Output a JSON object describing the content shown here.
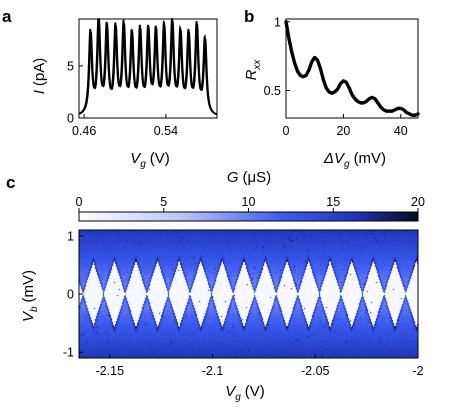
{
  "panels": {
    "a": "a",
    "b": "b",
    "c": "c"
  },
  "colors": {
    "line": "#000000",
    "map_low": "#ffffff",
    "map_mid": "#3d5cf2",
    "map_high": "#0b1440"
  },
  "chart_data": [
    {
      "type": "line",
      "panel": "a",
      "xlabel": {
        "var": "V",
        "sub": "g",
        "unit": "(V)"
      },
      "ylabel": {
        "var": "I",
        "unit": "(pA)"
      },
      "xlim": [
        0.455,
        0.59
      ],
      "ylim": [
        0,
        9.5
      ],
      "xticks": [
        0.46,
        0.54
      ],
      "xtick_labels": [
        "0.46",
        "0.54"
      ],
      "yticks": [
        0,
        5
      ],
      "ytick_labels": [
        "0",
        "5"
      ],
      "peaks_x": [
        0.466,
        0.474,
        0.482,
        0.4905,
        0.4985,
        0.5065,
        0.5145,
        0.5225,
        0.53,
        0.538,
        0.546,
        0.554,
        0.562,
        0.57,
        0.578
      ],
      "peaks_y": [
        7.9,
        8.8,
        8.2,
        8.1,
        8.3,
        7.4,
        7.8,
        7.8,
        7.7,
        8.1,
        8.5,
        7.6,
        7.5,
        8.4,
        7.2
      ],
      "peak_width": 0.0017
    },
    {
      "type": "line",
      "panel": "b",
      "xlabel": {
        "var": "ΔV",
        "sub": "g",
        "unit": "(mV)"
      },
      "ylabel": {
        "var": "R",
        "sub": "xx"
      },
      "xlim": [
        0,
        46
      ],
      "ylim": [
        0.3,
        1.02
      ],
      "xticks": [
        0,
        20,
        40
      ],
      "xtick_labels": [
        "0",
        "20",
        "40"
      ],
      "yticks": [
        0.5,
        1
      ],
      "ytick_labels": [
        "0.5",
        "1"
      ],
      "x": [
        0,
        1,
        2,
        3,
        4,
        5,
        6,
        7,
        8,
        9,
        10,
        11,
        12,
        13,
        14,
        15,
        16,
        17,
        18,
        19,
        20,
        21,
        22,
        23,
        24,
        25,
        26,
        27,
        28,
        29,
        30,
        31,
        32,
        33,
        34,
        35,
        36,
        37,
        38,
        39,
        40,
        41,
        42,
        43,
        44,
        45,
        46
      ],
      "y": [
        1.0,
        0.88,
        0.78,
        0.7,
        0.64,
        0.61,
        0.6,
        0.61,
        0.65,
        0.71,
        0.74,
        0.72,
        0.66,
        0.58,
        0.52,
        0.49,
        0.48,
        0.49,
        0.51,
        0.55,
        0.57,
        0.56,
        0.52,
        0.47,
        0.44,
        0.42,
        0.41,
        0.41,
        0.42,
        0.44,
        0.45,
        0.44,
        0.41,
        0.38,
        0.36,
        0.35,
        0.35,
        0.35,
        0.36,
        0.37,
        0.37,
        0.36,
        0.34,
        0.33,
        0.32,
        0.32,
        0.33
      ]
    },
    {
      "type": "heatmap",
      "panel": "c",
      "colorbar": {
        "label_var": "G",
        "label_unit": "(μS)",
        "ticks": [
          0,
          5,
          10,
          15,
          20
        ],
        "tick_labels": [
          "0",
          "5",
          "10",
          "15",
          "20"
        ],
        "range": [
          0,
          20
        ]
      },
      "xlabel": {
        "var": "V",
        "sub": "g",
        "unit": "(V)"
      },
      "ylabel": {
        "var": "V",
        "sub": "b",
        "unit": "(mV)"
      },
      "xlim": [
        -2.165,
        -2.0
      ],
      "ylim": [
        -1.1,
        1.1
      ],
      "xticks": [
        -2.15,
        -2.1,
        -2.05,
        -2.0
      ],
      "xtick_labels": [
        "-2.15",
        "-2.1",
        "-2.05",
        "-2"
      ],
      "yticks": [
        -1,
        0,
        1
      ],
      "ytick_labels": [
        "-1",
        "0",
        "1"
      ],
      "degeneracy_points_vg": [
        -2.163,
        -2.153,
        -2.1425,
        -2.132,
        -2.1215,
        -2.111,
        -2.1005,
        -2.09,
        -2.0795,
        -2.069,
        -2.0585,
        -2.048,
        -2.0375,
        -2.027,
        -2.0165,
        -2.006
      ],
      "diamond_half_height_mV": 0.55,
      "conductance_max_uS": 16
    }
  ]
}
